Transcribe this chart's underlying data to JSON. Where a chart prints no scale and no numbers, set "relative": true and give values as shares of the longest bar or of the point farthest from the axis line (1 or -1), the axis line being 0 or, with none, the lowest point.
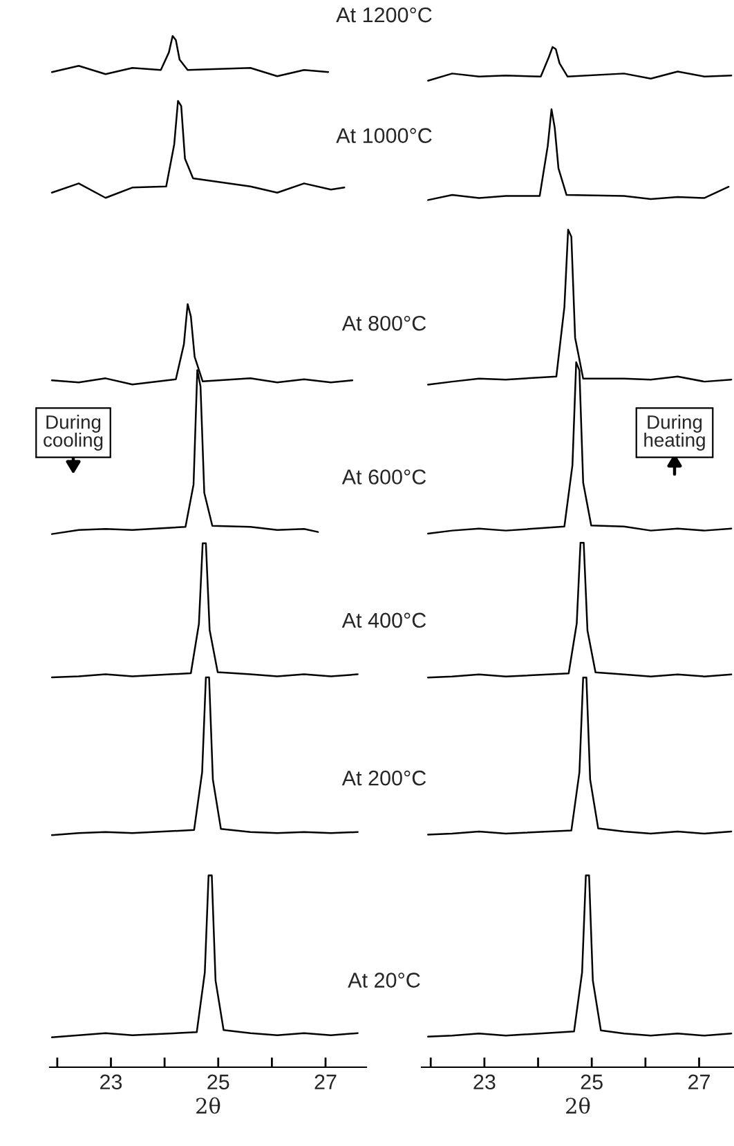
{
  "chart_data": [
    {
      "type": "line",
      "relative": true,
      "xlabel": "2θ",
      "xlim": [
        21.86,
        27.76
      ],
      "xticks": [
        {
          "value": 22,
          "label": null
        },
        23,
        {
          "value": 24,
          "label": null
        },
        25,
        {
          "value": 26,
          "label": null
        },
        27
      ],
      "annotations": [
        "During\ncooling"
      ],
      "series": [
        {
          "name": "At 1200°C",
          "color": "#000000",
          "x": [
            21.9,
            22.4,
            22.9,
            23.4,
            23.93,
            24.08,
            24.15,
            24.21,
            24.28,
            24.43,
            25.6,
            26.1,
            26.6,
            27.05
          ],
          "values": [
            0.965,
            0.971,
            0.963,
            0.969,
            0.967,
            0.984,
            1.0,
            0.996,
            0.977,
            0.967,
            0.969,
            0.961,
            0.967,
            0.965
          ]
        },
        {
          "name": "At 1000°C",
          "color": "#000000",
          "x": [
            21.9,
            22.4,
            22.9,
            23.4,
            24.03,
            24.18,
            24.25,
            24.31,
            24.38,
            24.53,
            25.6,
            26.1,
            26.6,
            27.1,
            27.35
          ],
          "values": [
            0.848,
            0.857,
            0.843,
            0.853,
            0.854,
            0.895,
            0.937,
            0.932,
            0.881,
            0.862,
            0.854,
            0.848,
            0.857,
            0.851,
            0.853
          ]
        },
        {
          "name": "At 800°C",
          "color": "#000000",
          "x": [
            21.9,
            22.4,
            22.9,
            23.4,
            24.21,
            24.36,
            24.43,
            24.49,
            24.56,
            24.71,
            25.6,
            26.1,
            26.6,
            27.1,
            27.5
          ],
          "values": [
            0.666,
            0.664,
            0.668,
            0.662,
            0.667,
            0.701,
            0.74,
            0.728,
            0.689,
            0.665,
            0.668,
            0.664,
            0.667,
            0.664,
            0.666
          ]
        },
        {
          "name": "At 600°C",
          "color": "#000000",
          "x": [
            21.9,
            22.4,
            22.9,
            23.4,
            24.39,
            24.54,
            24.61,
            24.67,
            24.74,
            24.89,
            25.6,
            26.1,
            26.6,
            26.86
          ],
          "values": [
            0.517,
            0.521,
            0.522,
            0.521,
            0.524,
            0.565,
            0.676,
            0.66,
            0.557,
            0.525,
            0.524,
            0.521,
            0.522,
            0.519
          ]
        },
        {
          "name": "At 400°C",
          "color": "#000000",
          "x": [
            21.9,
            22.4,
            22.9,
            23.4,
            24.49,
            24.64,
            24.71,
            24.77,
            24.84,
            24.99,
            25.6,
            26.1,
            26.6,
            27.1,
            27.6
          ],
          "values": [
            0.378,
            0.379,
            0.381,
            0.379,
            0.382,
            0.43,
            0.508,
            0.508,
            0.424,
            0.383,
            0.381,
            0.379,
            0.381,
            0.379,
            0.381
          ]
        },
        {
          "name": "At 200°C",
          "color": "#000000",
          "x": [
            21.9,
            22.4,
            22.9,
            23.4,
            24.55,
            24.7,
            24.77,
            24.83,
            24.9,
            25.05,
            25.6,
            26.1,
            26.6,
            27.1,
            27.6
          ],
          "values": [
            0.225,
            0.227,
            0.228,
            0.227,
            0.23,
            0.286,
            0.378,
            0.378,
            0.279,
            0.231,
            0.228,
            0.227,
            0.228,
            0.227,
            0.228
          ]
        },
        {
          "name": "At 20°C",
          "color": "#000000",
          "x": [
            21.9,
            22.4,
            22.9,
            23.4,
            24.6,
            24.75,
            24.82,
            24.88,
            24.95,
            25.1,
            25.6,
            26.1,
            26.6,
            27.1,
            27.6
          ],
          "values": [
            0.029,
            0.031,
            0.033,
            0.031,
            0.034,
            0.092,
            0.186,
            0.186,
            0.084,
            0.036,
            0.033,
            0.031,
            0.033,
            0.031,
            0.033
          ]
        }
      ]
    },
    {
      "type": "line",
      "relative": true,
      "xlabel": "2θ",
      "xlim": [
        21.83,
        27.65
      ],
      "xticks": [
        {
          "value": 22,
          "label": null
        },
        23,
        {
          "value": 24,
          "label": null
        },
        25,
        {
          "value": 26,
          "label": null
        },
        27
      ],
      "annotations": [
        "During\nheating"
      ],
      "series": [
        {
          "color": "#000000",
          "x": [
            21.95,
            22.4,
            22.9,
            23.4,
            24.05,
            24.2,
            24.27,
            24.33,
            24.4,
            24.55,
            25.6,
            26.1,
            26.6,
            27.1,
            27.6
          ],
          "values": [
            0.967,
            0.974,
            0.971,
            0.972,
            0.971,
            0.99,
            1.0,
            0.998,
            0.984,
            0.971,
            0.974,
            0.969,
            0.976,
            0.971,
            0.972
          ]
        },
        {
          "color": "#000000",
          "x": [
            21.95,
            22.4,
            22.9,
            23.4,
            24.03,
            24.18,
            24.25,
            24.31,
            24.38,
            24.53,
            25.6,
            26.1,
            26.6,
            27.1,
            27.55
          ],
          "values": [
            0.85,
            0.855,
            0.852,
            0.854,
            0.854,
            0.903,
            0.939,
            0.921,
            0.881,
            0.855,
            0.854,
            0.851,
            0.853,
            0.852,
            0.863
          ]
        },
        {
          "color": "#000000",
          "x": [
            21.95,
            22.4,
            22.9,
            23.4,
            24.34,
            24.49,
            24.56,
            24.62,
            24.69,
            24.84,
            25.6,
            26.1,
            26.6,
            27.1,
            27.6
          ],
          "values": [
            0.669,
            0.672,
            0.675,
            0.674,
            0.677,
            0.745,
            0.821,
            0.814,
            0.715,
            0.675,
            0.675,
            0.674,
            0.677,
            0.672,
            0.674
          ]
        },
        {
          "color": "#000000",
          "x": [
            21.95,
            22.4,
            22.9,
            23.4,
            24.49,
            24.64,
            24.71,
            24.77,
            24.84,
            24.99,
            25.6,
            26.1,
            26.6,
            27.1,
            27.6
          ],
          "values": [
            0.523,
            0.526,
            0.528,
            0.526,
            0.53,
            0.59,
            0.691,
            0.683,
            0.573,
            0.531,
            0.53,
            0.526,
            0.528,
            0.526,
            0.528
          ]
        },
        {
          "color": "#000000",
          "x": [
            21.95,
            22.4,
            22.9,
            23.4,
            24.57,
            24.72,
            24.79,
            24.85,
            24.92,
            25.07,
            25.6,
            26.1,
            26.6,
            27.1,
            27.6
          ],
          "values": [
            0.382,
            0.383,
            0.385,
            0.383,
            0.386,
            0.435,
            0.514,
            0.514,
            0.428,
            0.387,
            0.385,
            0.383,
            0.385,
            0.383,
            0.385
          ]
        },
        {
          "color": "#000000",
          "x": [
            21.95,
            22.4,
            22.9,
            23.4,
            24.62,
            24.77,
            24.84,
            24.9,
            24.97,
            25.12,
            25.6,
            26.1,
            26.6,
            27.1,
            27.6
          ],
          "values": [
            0.228,
            0.229,
            0.231,
            0.229,
            0.232,
            0.289,
            0.382,
            0.382,
            0.282,
            0.234,
            0.231,
            0.229,
            0.231,
            0.229,
            0.231
          ]
        },
        {
          "color": "#000000",
          "x": [
            21.95,
            22.4,
            22.9,
            23.4,
            24.67,
            24.82,
            24.89,
            24.95,
            25.02,
            25.17,
            25.6,
            26.1,
            26.6,
            27.1,
            27.6
          ],
          "values": [
            0.03,
            0.031,
            0.033,
            0.031,
            0.035,
            0.093,
            0.188,
            0.188,
            0.085,
            0.036,
            0.033,
            0.031,
            0.033,
            0.031,
            0.033
          ]
        }
      ]
    }
  ]
}
